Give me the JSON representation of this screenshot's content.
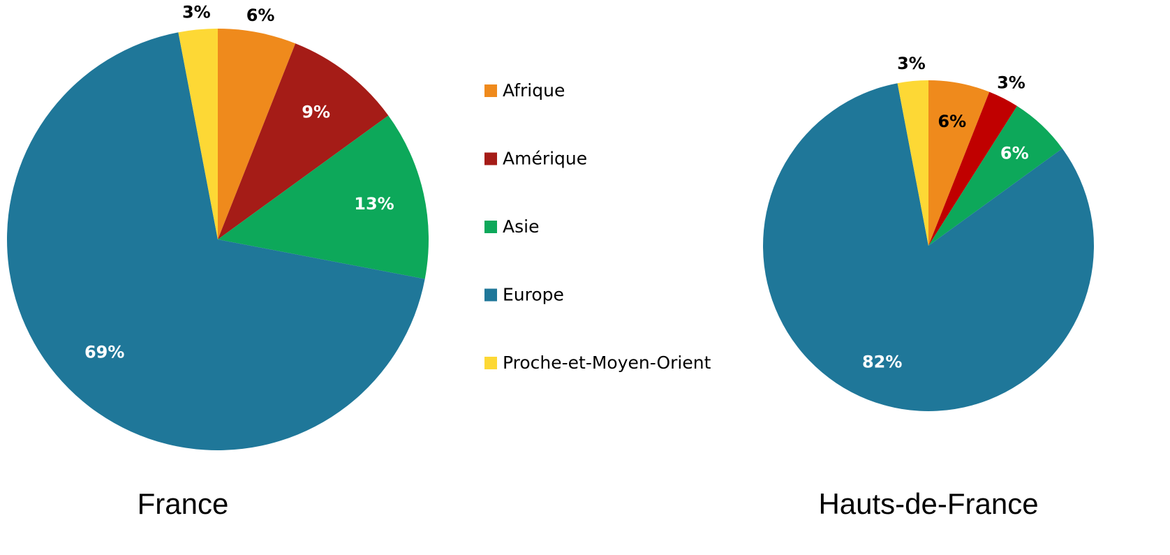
{
  "chart_data": [
    {
      "type": "pie",
      "title": "France",
      "categories": [
        "Afrique",
        "Amérique",
        "Asie",
        "Europe",
        "Proche-et-Moyen-Orient"
      ],
      "values": [
        6,
        9,
        13,
        69,
        3
      ],
      "value_labels": [
        "6%",
        "9%",
        "13%",
        "69%",
        "3%"
      ],
      "colors": [
        "#ef8a1c",
        "#a51c17",
        "#0da85a",
        "#1f7799",
        "#fdd835"
      ]
    },
    {
      "type": "pie",
      "title": "Hauts-de-France",
      "categories": [
        "Afrique",
        "Amérique",
        "Asie",
        "Europe",
        "Proche-et-Moyen-Orient"
      ],
      "values": [
        6,
        3,
        6,
        82,
        3
      ],
      "value_labels": [
        "6%",
        "3%",
        "6%",
        "82%",
        "3%"
      ],
      "colors": [
        "#ef8a1c",
        "#c00000",
        "#0da85a",
        "#1f7799",
        "#fdd835"
      ]
    }
  ]
}
